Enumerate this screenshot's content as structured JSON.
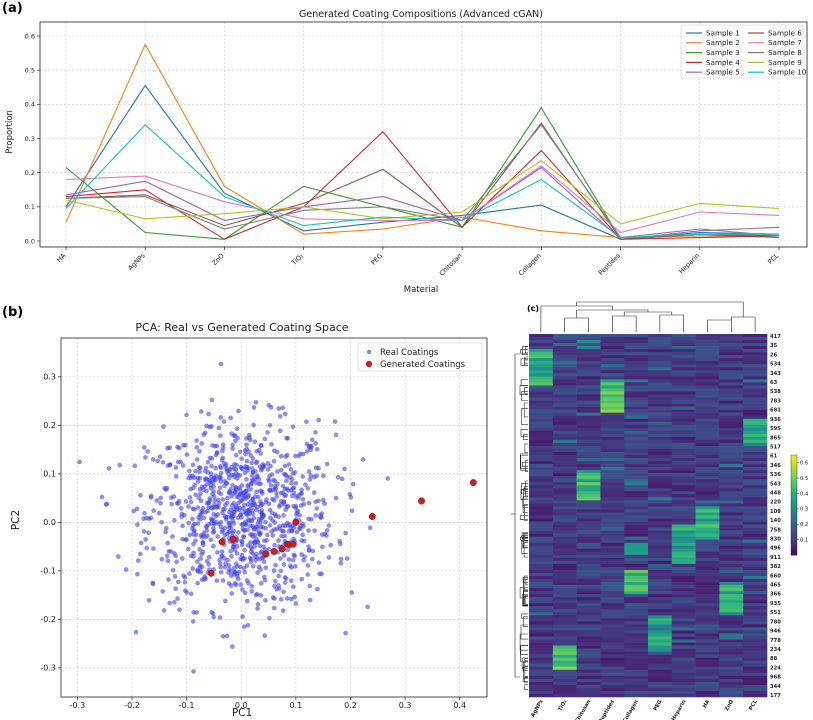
{
  "panels": {
    "a": "(a)",
    "b": "(b)",
    "c": "(c)"
  },
  "chart_data": [
    {
      "type": "line",
      "title": "Generated Coating Compositions (Advanced cGAN)",
      "xlabel": "Material",
      "ylabel": "Proportion",
      "ylim": [
        0,
        0.6
      ],
      "yticks": [
        "0.0",
        "0.1",
        "0.2",
        "0.3",
        "0.4",
        "0.5",
        "0.6"
      ],
      "categories": [
        "HA",
        "AgNPs",
        "ZnO",
        "TiO₂",
        "PEG",
        "Chitosan",
        "Collagen",
        "Peptides",
        "Heparin",
        "PCL"
      ],
      "grid": true,
      "legend": "top-right",
      "series": [
        {
          "name": "Sample 1",
          "color": "#1f77b4",
          "values": [
            0.1,
            0.455,
            0.14,
            0.03,
            0.055,
            0.075,
            0.105,
            0.005,
            0.025,
            0.02
          ]
        },
        {
          "name": "Sample 2",
          "color": "#ff7f0e",
          "values": [
            0.055,
            0.575,
            0.16,
            0.02,
            0.035,
            0.07,
            0.03,
            0.01,
            0.015,
            0.015
          ]
        },
        {
          "name": "Sample 3",
          "color": "#2ca02c",
          "values": [
            0.215,
            0.025,
            0.005,
            0.16,
            0.1,
            0.04,
            0.39,
            0.005,
            0.02,
            0.01
          ]
        },
        {
          "name": "Sample 4",
          "color": "#d62728",
          "values": [
            0.13,
            0.15,
            0.005,
            0.1,
            0.32,
            0.04,
            0.265,
            0.005,
            0.01,
            0.015
          ]
        },
        {
          "name": "Sample 5",
          "color": "#9467bd",
          "values": [
            0.135,
            0.175,
            0.06,
            0.1,
            0.13,
            0.06,
            0.215,
            0.005,
            0.03,
            0.04
          ]
        },
        {
          "name": "Sample 6",
          "color": "#8c564b",
          "values": [
            0.125,
            0.135,
            0.045,
            0.11,
            0.21,
            0.04,
            0.345,
            0.005,
            0.02,
            0.015
          ]
        },
        {
          "name": "Sample 7",
          "color": "#e377c2",
          "values": [
            0.18,
            0.19,
            0.115,
            0.065,
            0.06,
            0.06,
            0.22,
            0.025,
            0.085,
            0.075
          ]
        },
        {
          "name": "Sample 8",
          "color": "#7f7f7f",
          "values": [
            0.125,
            0.13,
            0.035,
            0.09,
            0.1,
            0.06,
            0.34,
            0.01,
            0.035,
            0.015
          ]
        },
        {
          "name": "Sample 9",
          "color": "#bcbd22",
          "values": [
            0.12,
            0.065,
            0.08,
            0.1,
            0.065,
            0.085,
            0.235,
            0.05,
            0.11,
            0.095
          ]
        },
        {
          "name": "Sample 10",
          "color": "#17becf",
          "values": [
            0.095,
            0.34,
            0.13,
            0.045,
            0.07,
            0.06,
            0.18,
            0.01,
            0.02,
            0.02
          ]
        }
      ]
    },
    {
      "type": "scatter",
      "title": "PCA: Real vs Generated Coating Space",
      "xlabel": "PC1",
      "ylabel": "PC2",
      "xlim": [
        -0.33,
        0.45
      ],
      "ylim": [
        -0.36,
        0.38
      ],
      "xticks": [
        "-0.3",
        "-0.2",
        "-0.1",
        "0.0",
        "0.1",
        "0.2",
        "0.3",
        "0.4"
      ],
      "yticks": [
        "-0.3",
        "-0.2",
        "-0.1",
        "0.0",
        "0.1",
        "0.2",
        "0.3"
      ],
      "grid": true,
      "legend": "top-right",
      "series": [
        {
          "name": "Real Coatings",
          "color": "#4a4ae8",
          "n_points": 1000,
          "note_distribution": "dense cloud centred near (0, 0)"
        },
        {
          "name": "Generated Coatings",
          "color": "#cc2020",
          "points": [
            [
              -0.055,
              -0.105
            ],
            [
              -0.035,
              -0.04
            ],
            [
              -0.015,
              -0.035
            ],
            [
              0.045,
              -0.065
            ],
            [
              0.06,
              -0.06
            ],
            [
              0.075,
              -0.055
            ],
            [
              0.085,
              -0.045
            ],
            [
              0.095,
              -0.045
            ],
            [
              0.1,
              -0.0
            ],
            [
              0.24,
              0.012
            ],
            [
              0.33,
              0.044
            ],
            [
              0.425,
              0.082
            ]
          ]
        }
      ]
    },
    {
      "type": "heatmap",
      "columns": [
        "AgNPs",
        "TiO₂",
        "Chitosan",
        "Peptides",
        "Collagen",
        "PEG",
        "Heparin",
        "HA",
        "ZnO",
        "PCL"
      ],
      "row_labels": [
        "417",
        "35",
        "26",
        "534",
        "343",
        "63",
        "538",
        "783",
        "681",
        "936",
        "595",
        "865",
        "517",
        "61",
        "346",
        "536",
        "543",
        "448",
        "220",
        "109",
        "140",
        "758",
        "830",
        "496",
        "911",
        "382",
        "660",
        "465",
        "366",
        "935",
        "551",
        "780",
        "946",
        "778",
        "234",
        "88",
        "224",
        "968",
        "344",
        "177"
      ],
      "colorbar_ticks": [
        "0.6",
        "0.5",
        "0.4",
        "0.3",
        "0.2",
        "0.1"
      ],
      "colormap": "viridis",
      "dendrogram": "top"
    }
  ]
}
